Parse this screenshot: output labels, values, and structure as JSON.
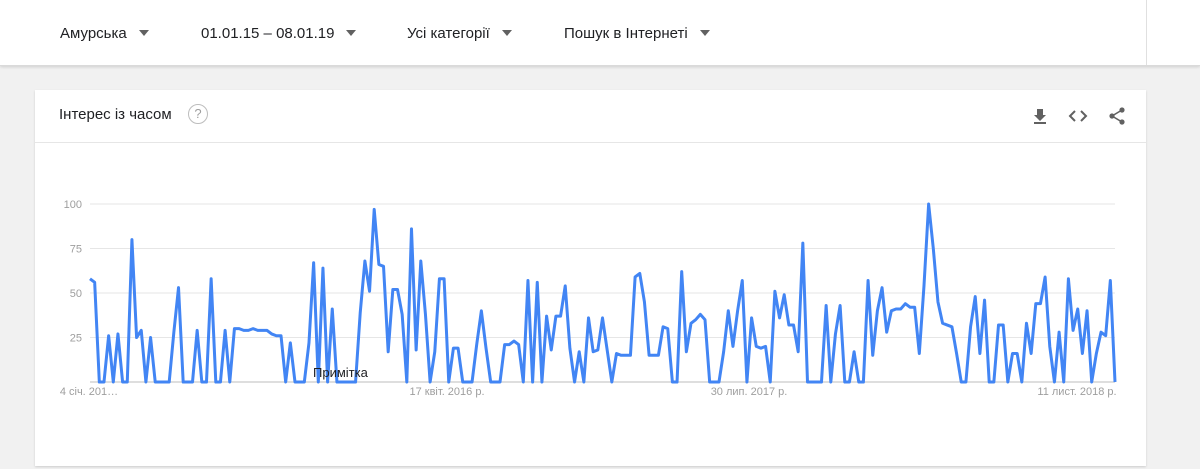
{
  "filters": [
    {
      "label": "Амурська"
    },
    {
      "label": "01.01.15 – 08.01.19"
    },
    {
      "label": "Усі категорії"
    },
    {
      "label": "Пошук в Інтернеті"
    }
  ],
  "card": {
    "title": "Інтерес із часом",
    "help_glyph": "?",
    "tools": [
      "download-icon",
      "embed-code-icon",
      "share-icon"
    ]
  },
  "chart_data": {
    "type": "line",
    "ylim": [
      0,
      100
    ],
    "y_ticks": [
      25,
      50,
      75,
      100
    ],
    "x_tick_labels": [
      "4 січ. 201…",
      "17 квіт. 2016 р.",
      "30 лип. 2017 р.",
      "11 лист. 2018 р."
    ],
    "annotation": "Примітка",
    "grid": true,
    "color": "#4285f4",
    "series": [
      {
        "values": [
          58,
          56,
          0,
          0,
          26,
          0,
          27,
          0,
          0,
          80,
          25,
          29,
          0,
          25,
          0,
          0,
          0,
          0,
          28,
          53,
          0,
          0,
          0,
          29,
          0,
          0,
          58,
          0,
          0,
          29,
          0,
          30,
          30,
          29,
          29,
          30,
          29,
          29,
          29,
          27,
          26,
          26,
          0,
          22,
          0,
          0,
          0,
          22,
          67,
          0,
          64,
          0,
          41,
          0,
          0,
          0,
          0,
          0,
          39,
          68,
          51,
          97,
          66,
          65,
          17,
          52,
          52,
          38,
          0,
          86,
          18,
          68,
          38,
          0,
          17,
          58,
          58,
          0,
          19,
          19,
          0,
          0,
          0,
          21,
          40,
          19,
          0,
          0,
          0,
          21,
          21,
          23,
          21,
          0,
          57,
          0,
          56,
          0,
          37,
          18,
          37,
          37,
          54,
          19,
          0,
          17,
          0,
          36,
          17,
          18,
          36,
          18,
          0,
          16,
          15,
          15,
          15,
          59,
          61,
          45,
          15,
          15,
          15,
          31,
          30,
          0,
          0,
          62,
          17,
          33,
          35,
          38,
          35,
          0,
          0,
          0,
          17,
          40,
          20,
          40,
          57,
          0,
          36,
          20,
          19,
          20,
          0,
          51,
          36,
          49,
          32,
          32,
          17,
          78,
          0,
          0,
          0,
          0,
          43,
          0,
          27,
          43,
          0,
          0,
          17,
          0,
          0,
          57,
          15,
          40,
          53,
          28,
          40,
          41,
          41,
          44,
          42,
          42,
          16,
          54,
          100,
          75,
          45,
          33,
          32,
          31,
          16,
          0,
          0,
          31,
          48,
          16,
          46,
          0,
          0,
          32,
          32,
          0,
          16,
          16,
          0,
          33,
          16,
          44,
          44,
          59,
          20,
          0,
          28,
          0,
          58,
          29,
          41,
          16,
          40,
          0,
          16,
          28,
          26,
          57,
          0
        ]
      }
    ]
  }
}
